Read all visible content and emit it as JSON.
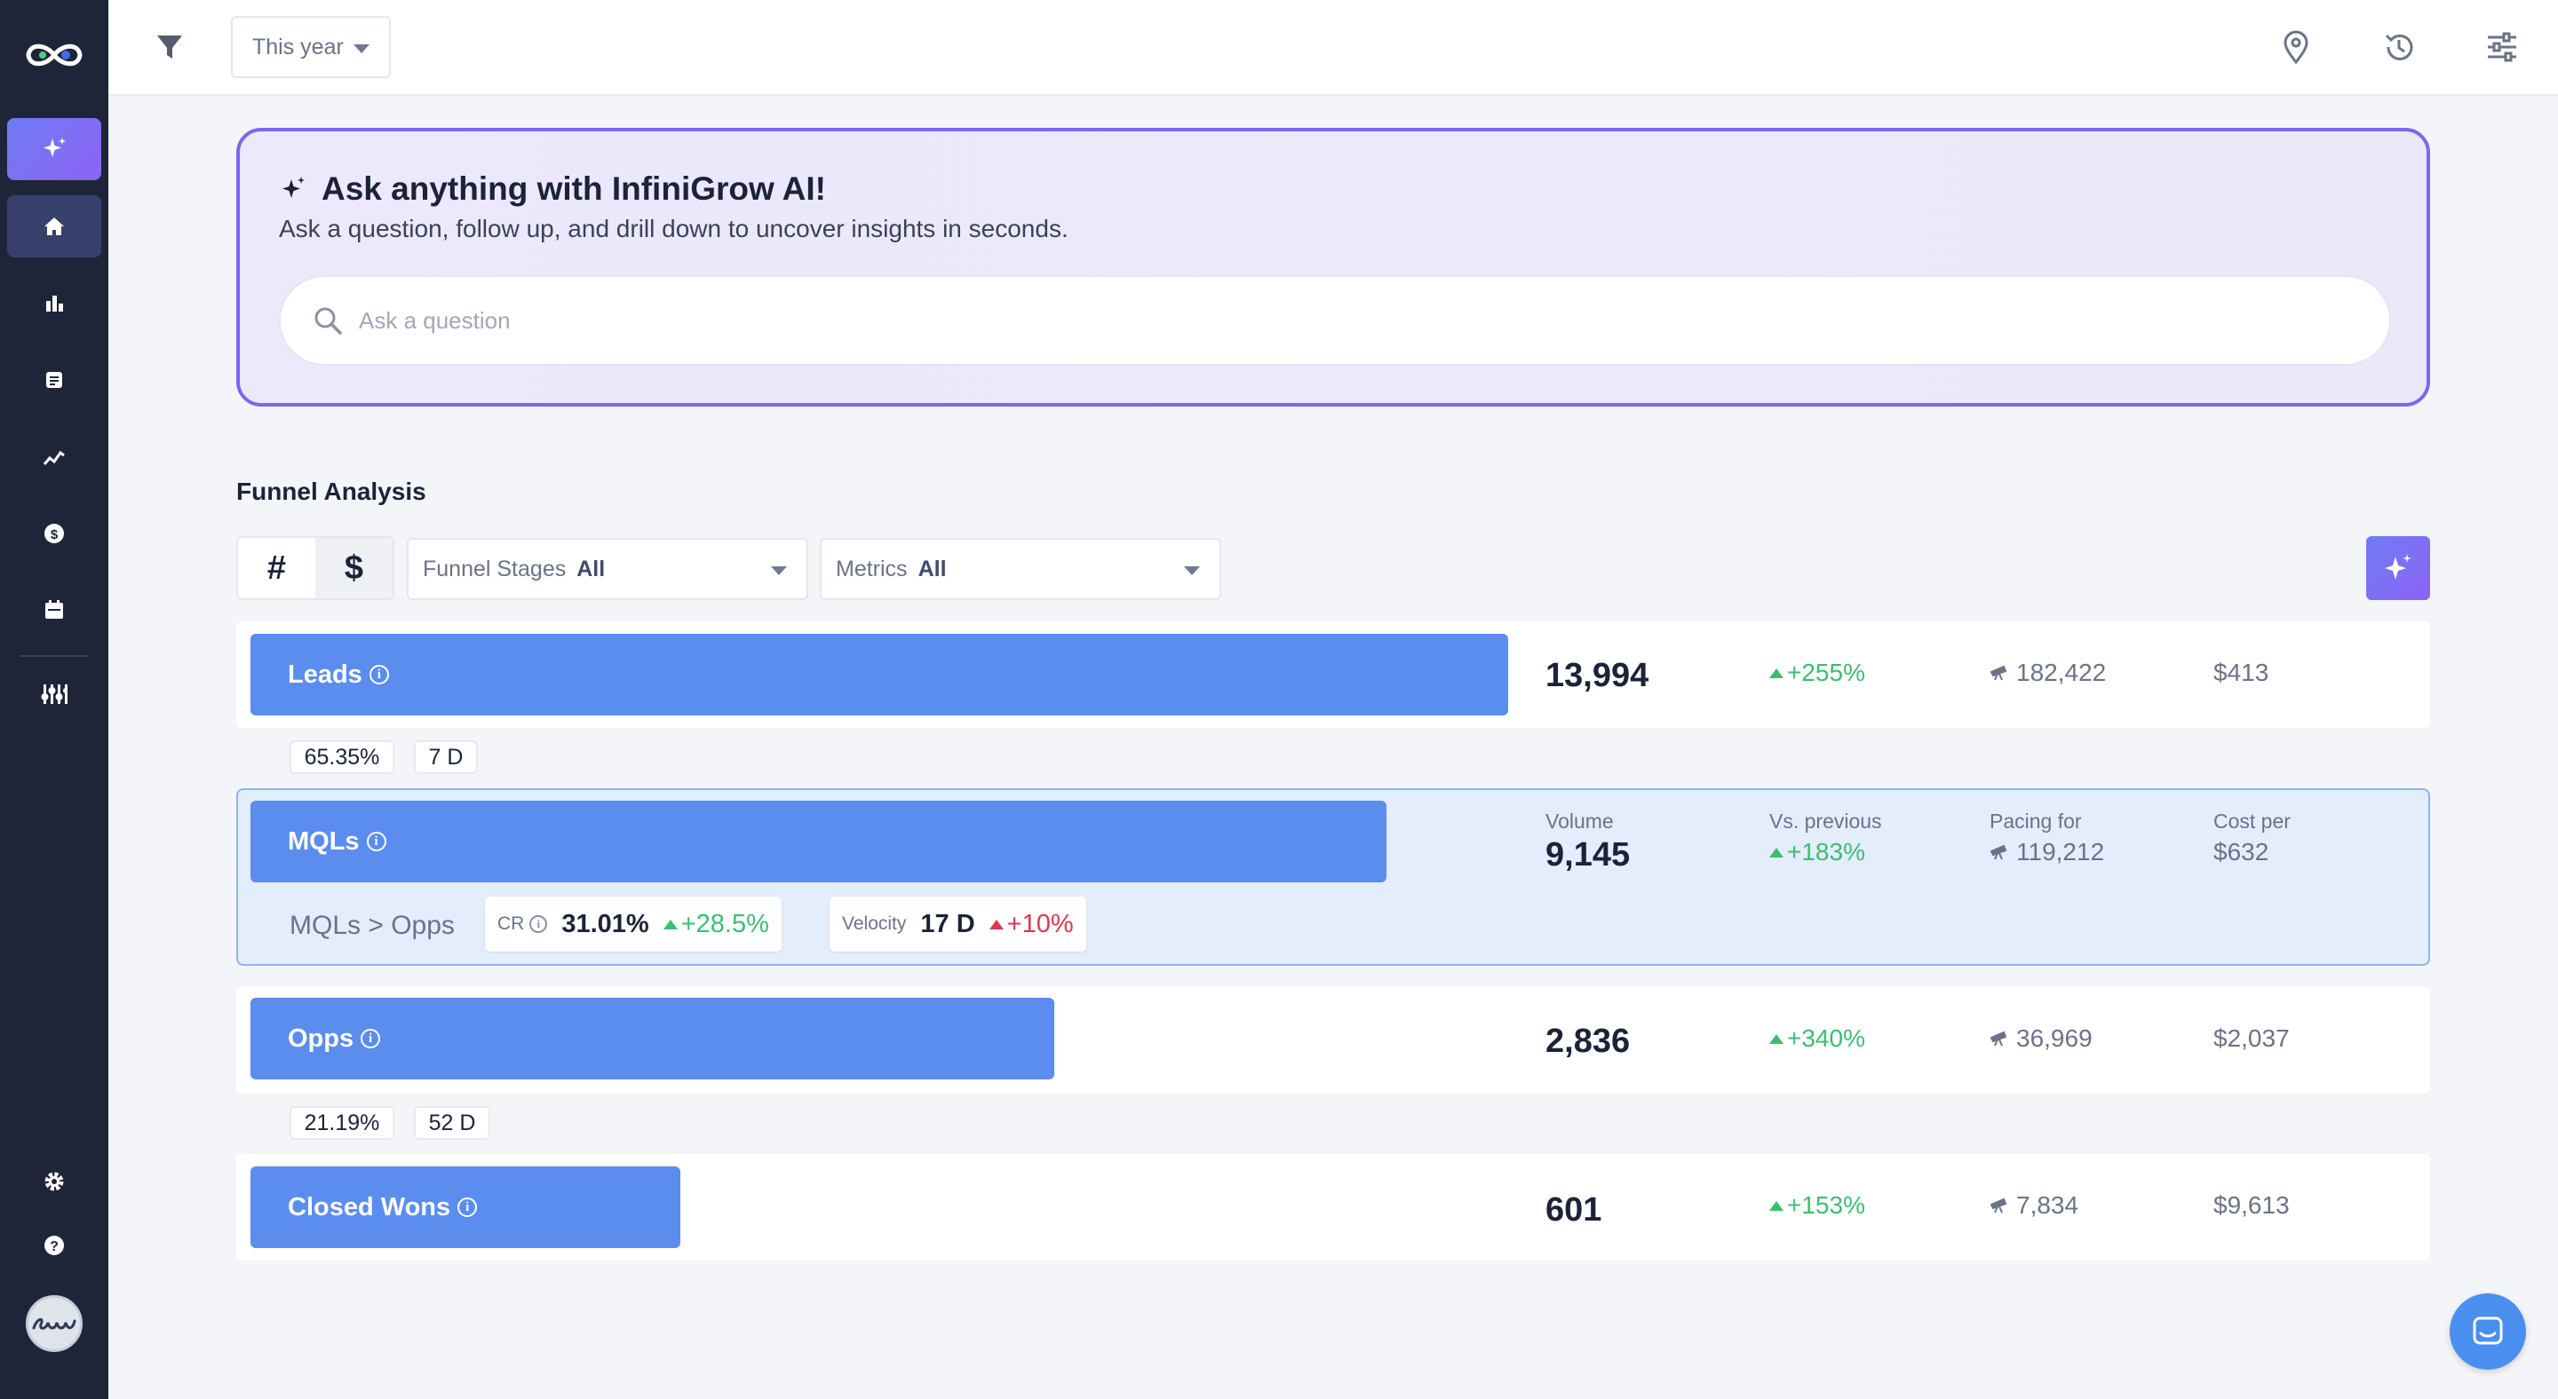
{
  "topbar": {
    "period": "This year"
  },
  "ai_card": {
    "title": "Ask anything with InfiniGrow AI!",
    "subtitle": "Ask a question, follow up, and drill down to uncover insights in seconds.",
    "search_placeholder": "Ask a question"
  },
  "funnel": {
    "title": "Funnel Analysis",
    "toggle_count": "#",
    "toggle_dollar": "$",
    "stages_label": "Funnel Stages",
    "stages_value": "All",
    "metrics_label": "Metrics",
    "metrics_value": "All",
    "rows": [
      {
        "name": "Leads",
        "volume": "13,994",
        "change": "+255%",
        "pacing": "182,422",
        "cost": "$413",
        "bar_fraction": 1.0
      },
      {
        "name": "MQLs",
        "volume": "9,145",
        "change": "+183%",
        "pacing": "119,212",
        "cost": "$632",
        "bar_fraction": 0.903
      },
      {
        "name": "Opps",
        "volume": "2,836",
        "change": "+340%",
        "pacing": "36,969",
        "cost": "$2,037",
        "bar_fraction": 0.639
      },
      {
        "name": "Closed Wons",
        "volume": "601",
        "change": "+153%",
        "pacing": "7,834",
        "cost": "$9,613",
        "bar_fraction": 0.342
      }
    ],
    "leads_to_mqls": {
      "cr": "65.35%",
      "velocity": "7 D"
    },
    "opps_to_won": {
      "cr": "21.19%",
      "velocity": "52 D"
    },
    "selected": {
      "volume_label": "Volume",
      "vs_label": "Vs. previous",
      "pacing_label": "Pacing for",
      "cost_label": "Cost per",
      "transition": "MQLs > Opps",
      "cr_label": "CR",
      "cr_value": "31.01%",
      "cr_change": "+28.5%",
      "velocity_label": "Velocity",
      "velocity_value": "17 D",
      "velocity_change": "+10%"
    }
  },
  "colors": {
    "sidebar": "#1f2538",
    "accent": "#7b67f0",
    "bar": "#5b8def",
    "positive": "#3cbe72",
    "negative": "#e0364e"
  }
}
